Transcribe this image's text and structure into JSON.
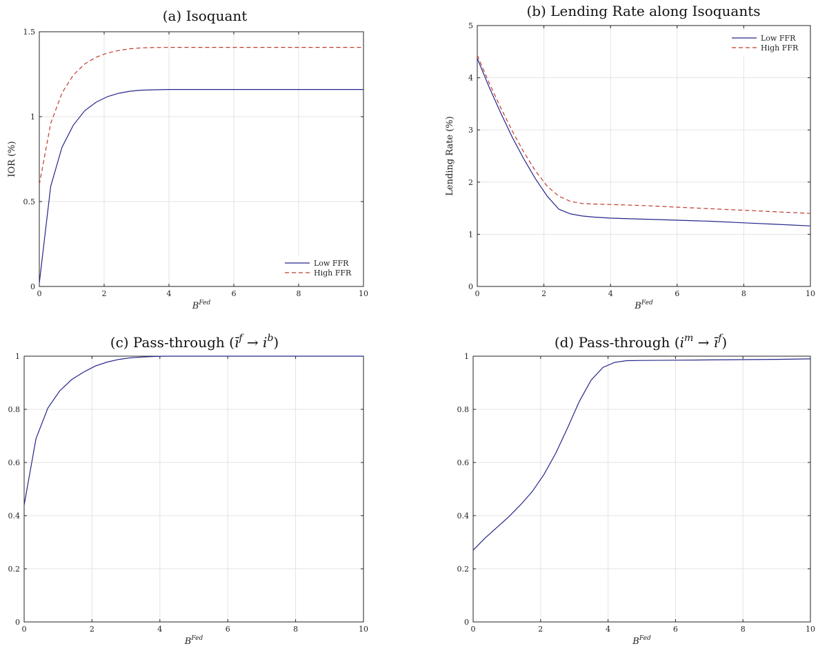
{
  "colors": {
    "series_low": "#24248a",
    "series_high": "#c0392b"
  },
  "chart_data": [
    {
      "id": "a",
      "type": "line",
      "title": "(a) Isoquant",
      "xlabel": {
        "base": "B",
        "sup": "Fed"
      },
      "ylabel": "IOR (%)",
      "xlim": [
        0,
        10
      ],
      "ylim": [
        0,
        1.5
      ],
      "xticks": [
        0,
        2,
        4,
        6,
        8,
        10
      ],
      "yticks": [
        0,
        0.5,
        1,
        1.5
      ],
      "xtick_labels": [
        "0",
        "2",
        "4",
        "6",
        "8",
        "10"
      ],
      "ytick_labels": [
        "0",
        "0.5",
        "1",
        "1.5"
      ],
      "grid": true,
      "legend": "bottom-right",
      "series": [
        {
          "name": "Low FFR",
          "style": "solid",
          "color": "#24248a",
          "x": [
            0,
            0.35,
            0.7,
            1.05,
            1.4,
            1.75,
            2.1,
            2.45,
            2.8,
            3.15,
            3.5,
            4,
            5,
            6,
            7,
            8,
            9,
            10
          ],
          "y": [
            0.02,
            0.59,
            0.82,
            0.95,
            1.035,
            1.085,
            1.118,
            1.138,
            1.15,
            1.156,
            1.158,
            1.16,
            1.16,
            1.16,
            1.16,
            1.16,
            1.16,
            1.16
          ]
        },
        {
          "name": "High FFR",
          "style": "dashed",
          "color": "#c0392b",
          "x": [
            0,
            0.35,
            0.7,
            1.05,
            1.4,
            1.75,
            2.1,
            2.45,
            2.8,
            3.15,
            3.5,
            4,
            5,
            6,
            7,
            8,
            9,
            10
          ],
          "y": [
            0.6,
            0.96,
            1.14,
            1.245,
            1.31,
            1.35,
            1.375,
            1.39,
            1.4,
            1.405,
            1.407,
            1.408,
            1.408,
            1.408,
            1.408,
            1.408,
            1.408,
            1.408
          ]
        }
      ]
    },
    {
      "id": "b",
      "type": "line",
      "title": "(b) Lending Rate along Isoquants",
      "xlabel": {
        "base": "B",
        "sup": "Fed"
      },
      "ylabel": "Lending Rate (%)",
      "xlim": [
        0,
        10
      ],
      "ylim": [
        0,
        5
      ],
      "xticks": [
        0,
        2,
        4,
        6,
        8,
        10
      ],
      "yticks": [
        0,
        1,
        2,
        3,
        4,
        5
      ],
      "xtick_labels": [
        "0",
        "2",
        "4",
        "6",
        "8",
        "10"
      ],
      "ytick_labels": [
        "0",
        "1",
        "2",
        "3",
        "4",
        "5"
      ],
      "grid": true,
      "legend": "top-right",
      "series": [
        {
          "name": "Low FFR",
          "style": "solid",
          "color": "#24248a",
          "x": [
            0,
            0.35,
            0.7,
            1.05,
            1.4,
            1.75,
            2.1,
            2.45,
            2.8,
            3.15,
            3.5,
            4,
            5,
            6,
            7,
            8,
            9,
            10
          ],
          "y": [
            4.37,
            3.83,
            3.33,
            2.86,
            2.44,
            2.06,
            1.73,
            1.48,
            1.39,
            1.35,
            1.33,
            1.31,
            1.29,
            1.27,
            1.25,
            1.22,
            1.19,
            1.16
          ]
        },
        {
          "name": "High FFR",
          "style": "dashed",
          "color": "#c0392b",
          "x": [
            0,
            0.35,
            0.7,
            1.05,
            1.4,
            1.75,
            2.1,
            2.45,
            2.8,
            3.15,
            3.5,
            4,
            5,
            6,
            7,
            8,
            9,
            10
          ],
          "y": [
            4.43,
            3.91,
            3.43,
            2.98,
            2.57,
            2.21,
            1.92,
            1.73,
            1.63,
            1.59,
            1.58,
            1.57,
            1.55,
            1.52,
            1.49,
            1.46,
            1.43,
            1.4
          ]
        }
      ]
    },
    {
      "id": "c",
      "type": "line",
      "title": "(c) Pass-through",
      "title_math": "( ī f → i b )",
      "xlabel": {
        "base": "B",
        "sup": "Fed"
      },
      "ylabel": "",
      "xlim": [
        0,
        10
      ],
      "ylim": [
        0,
        1
      ],
      "xticks": [
        0,
        2,
        4,
        6,
        8,
        10
      ],
      "yticks": [
        0,
        0.2,
        0.4,
        0.6,
        0.8,
        1
      ],
      "xtick_labels": [
        "0",
        "2",
        "4",
        "6",
        "8",
        "10"
      ],
      "ytick_labels": [
        "0",
        "0.2",
        "0.4",
        "0.6",
        "0.8",
        "1"
      ],
      "grid": true,
      "series": [
        {
          "style": "solid",
          "color": "#24248a",
          "x": [
            0,
            0.35,
            0.7,
            1.05,
            1.4,
            1.75,
            2.1,
            2.45,
            2.8,
            3.15,
            3.5,
            3.85,
            4.2,
            5,
            6,
            7,
            8,
            9,
            10
          ],
          "y": [
            0.44,
            0.69,
            0.805,
            0.87,
            0.912,
            0.94,
            0.963,
            0.978,
            0.988,
            0.994,
            0.997,
            0.999,
            1.0,
            1.0,
            1.0,
            1.0,
            1.0,
            1.0,
            1.0
          ]
        }
      ]
    },
    {
      "id": "d",
      "type": "line",
      "title": "(d) Pass-through",
      "xlabel": {
        "base": "B",
        "sup": "Fed"
      },
      "ylabel": "",
      "xlim": [
        0,
        10
      ],
      "ylim": [
        0,
        1
      ],
      "xticks": [
        0,
        2,
        4,
        6,
        8,
        10
      ],
      "yticks": [
        0,
        0.2,
        0.4,
        0.6,
        0.8,
        1
      ],
      "xtick_labels": [
        "0",
        "2",
        "4",
        "6",
        "8",
        "10"
      ],
      "ytick_labels": [
        "0",
        "0.2",
        "0.4",
        "0.6",
        "0.8",
        "1"
      ],
      "grid": true,
      "series": [
        {
          "style": "solid",
          "color": "#24248a",
          "x": [
            0,
            0.35,
            0.7,
            1.05,
            1.4,
            1.75,
            2.1,
            2.45,
            2.8,
            3.15,
            3.5,
            3.85,
            4.2,
            4.55,
            5,
            6,
            7,
            8,
            9,
            10
          ],
          "y": [
            0.27,
            0.315,
            0.355,
            0.395,
            0.44,
            0.49,
            0.555,
            0.635,
            0.73,
            0.83,
            0.91,
            0.958,
            0.977,
            0.983,
            0.984,
            0.985,
            0.986,
            0.987,
            0.988,
            0.99
          ]
        }
      ]
    }
  ]
}
